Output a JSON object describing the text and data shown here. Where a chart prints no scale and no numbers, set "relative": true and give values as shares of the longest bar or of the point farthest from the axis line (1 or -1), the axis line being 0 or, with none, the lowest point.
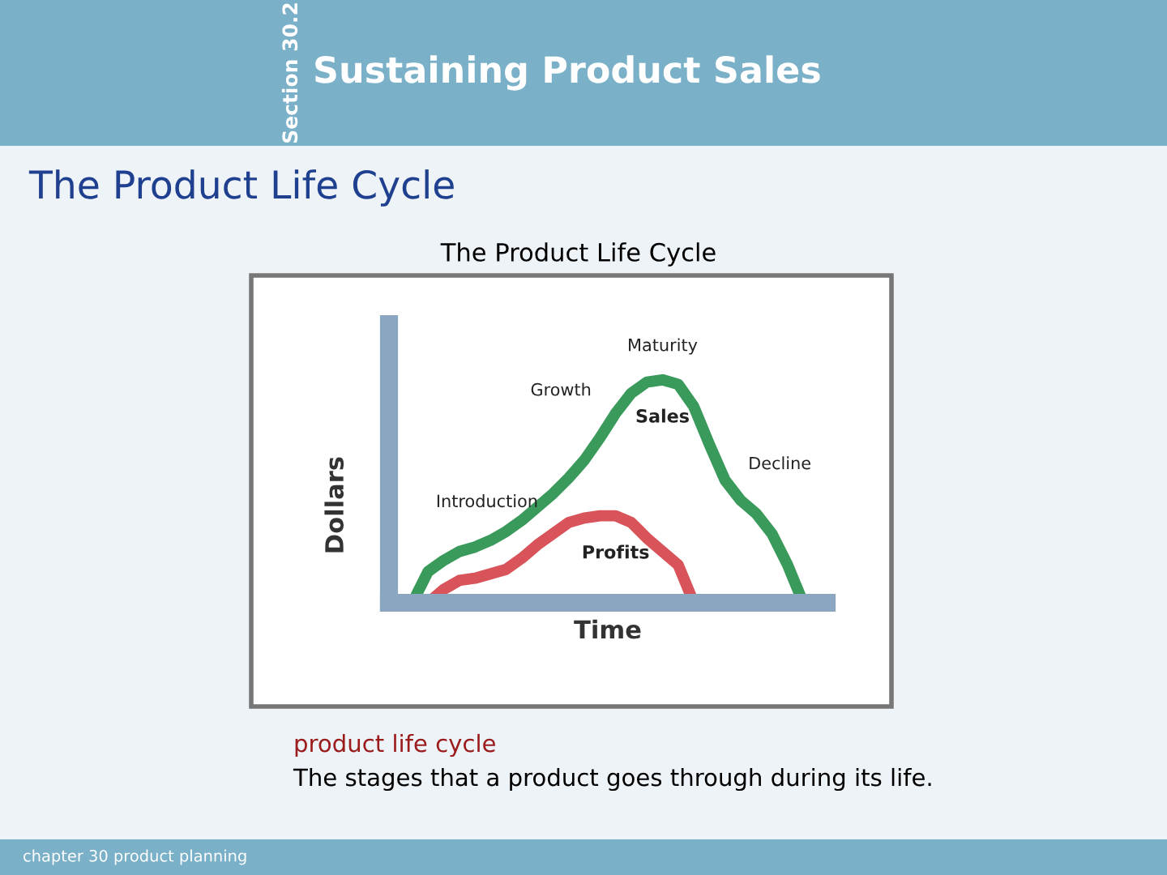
{
  "chart_data": {
    "type": "line",
    "relative": true,
    "title": "The Product Life Cycle",
    "xlabel": "Time",
    "ylabel": "Dollars",
    "categories": [
      null,
      null,
      null,
      null,
      null,
      null,
      null,
      null,
      null,
      null,
      null,
      null,
      null,
      null,
      null,
      null,
      null,
      null,
      null,
      null,
      null,
      null,
      null,
      null,
      null,
      null
    ],
    "series": [
      {
        "name": "Sales",
        "color": "#3a9a5b",
        "values": [
          0,
          0.14,
          0.19,
          0.23,
          0.25,
          0.28,
          0.32,
          0.37,
          0.43,
          0.49,
          0.56,
          0.64,
          0.74,
          0.85,
          0.94,
          0.99,
          1,
          0.98,
          0.88,
          0.71,
          0.55,
          0.46,
          0.4,
          0.31,
          0.17,
          0
        ]
      },
      {
        "name": "Profits",
        "color": "#d9535a",
        "values": [
          null,
          0,
          0.06,
          0.1,
          0.11,
          0.13,
          0.15,
          0.2,
          0.26,
          0.31,
          0.36,
          0.38,
          0.39,
          0.39,
          0.36,
          0.29,
          0.23,
          0.17,
          0,
          null,
          null,
          null,
          null,
          null,
          null,
          null
        ]
      }
    ],
    "annotations": [
      "Section 30.2",
      "Sustaining Product Sales",
      "The Product Life Cycle",
      "product life cycle",
      "The stages that a product goes through during its life.",
      "chapter 30 product planning",
      "Introduction",
      "Growth",
      "Maturity",
      "Decline"
    ],
    "legend": false,
    "grid": false,
    "marker": "none",
    "line_style": "solid"
  }
}
